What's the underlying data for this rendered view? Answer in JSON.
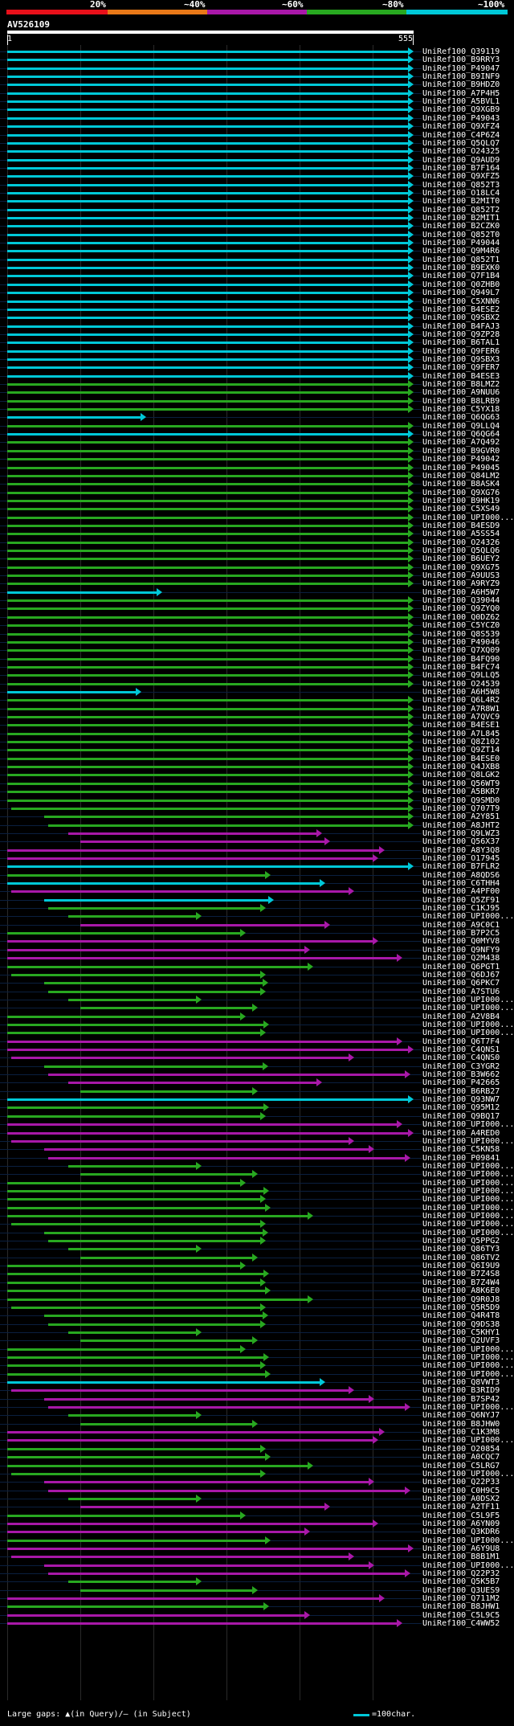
{
  "legend": {
    "labels": [
      "20%",
      "~40%",
      "~60%",
      "~80%",
      "~100%"
    ],
    "colors": [
      "#e8101a",
      "#e87818",
      "#a818a8",
      "#28a820",
      "#00c8d8"
    ]
  },
  "query": {
    "id": "AV526109",
    "start": "1",
    "end": "555"
  },
  "hits": [
    {
      "label": "UniRef100_Q39119",
      "color": "#00c8d8"
    },
    {
      "label": "UniRef100_B9RRY3",
      "color": "#00c8d8"
    },
    {
      "label": "UniRef100_P49047",
      "color": "#00c8d8"
    },
    {
      "label": "UniRef100_B9INF9",
      "color": "#00c8d8"
    },
    {
      "label": "UniRef100_B9HDZ0",
      "color": "#00c8d8"
    },
    {
      "label": "UniRef100_A7P4H5",
      "color": "#00c8d8"
    },
    {
      "label": "UniRef100_A5BVL1",
      "color": "#00c8d8"
    },
    {
      "label": "UniRef100_Q9XGB9",
      "color": "#00c8d8"
    },
    {
      "label": "UniRef100_P49043",
      "color": "#00c8d8"
    },
    {
      "label": "UniRef100_Q9XFZ4",
      "color": "#00c8d8"
    },
    {
      "label": "UniRef100_C4P6Z4",
      "color": "#00c8d8"
    },
    {
      "label": "UniRef100_Q5QLQ7",
      "color": "#00c8d8"
    },
    {
      "label": "UniRef100_O24325",
      "color": "#00c8d8"
    },
    {
      "label": "UniRef100_Q9AUD9",
      "color": "#00c8d8"
    },
    {
      "label": "UniRef100_B7F164",
      "color": "#00c8d8"
    },
    {
      "label": "UniRef100_Q9XFZ5",
      "color": "#00c8d8"
    },
    {
      "label": "UniRef100_Q852T3",
      "color": "#00c8d8"
    },
    {
      "label": "UniRef100_O18LC4",
      "color": "#00c8d8"
    },
    {
      "label": "UniRef100_B2MIT0",
      "color": "#00c8d8"
    },
    {
      "label": "UniRef100_Q852T2",
      "color": "#00c8d8"
    },
    {
      "label": "UniRef100_B2MIT1",
      "color": "#00c8d8"
    },
    {
      "label": "UniRef100_B2CZK0",
      "color": "#00c8d8"
    },
    {
      "label": "UniRef100_Q852T0",
      "color": "#00c8d8"
    },
    {
      "label": "UniRef100_P49044",
      "color": "#00c8d8"
    },
    {
      "label": "UniRef100_Q9M4R6",
      "color": "#00c8d8"
    },
    {
      "label": "UniRef100_Q852T1",
      "color": "#00c8d8"
    },
    {
      "label": "UniRef100_B9EXK0",
      "color": "#00c8d8"
    },
    {
      "label": "UniRef100_Q7F1B4",
      "color": "#00c8d8"
    },
    {
      "label": "UniRef100_Q0ZHB0",
      "color": "#00c8d8"
    },
    {
      "label": "UniRef100_Q949L7",
      "color": "#00c8d8"
    },
    {
      "label": "UniRef100_C5XNN6",
      "color": "#00c8d8"
    },
    {
      "label": "UniRef100_B4ESE2",
      "color": "#00c8d8"
    },
    {
      "label": "UniRef100_Q9SBX2",
      "color": "#00c8d8"
    },
    {
      "label": "UniRef100_B4FAJ3",
      "color": "#00c8d8"
    },
    {
      "label": "UniRef100_Q9ZP28",
      "color": "#00c8d8"
    },
    {
      "label": "UniRef100_B6TAL1",
      "color": "#00c8d8"
    },
    {
      "label": "UniRef100_Q9FER6",
      "color": "#00c8d8"
    },
    {
      "label": "UniRef100_Q9SBX3",
      "color": "#00c8d8"
    },
    {
      "label": "UniRef100_Q9FER7",
      "color": "#00c8d8"
    },
    {
      "label": "UniRef100_B4ESE3",
      "color": "#00c8d8"
    },
    {
      "label": "UniRef100_B8LMZ2",
      "color": "#28a820"
    },
    {
      "label": "UniRef100_A9NUU6",
      "color": "#28a820"
    },
    {
      "label": "UniRef100_B8LRB9",
      "color": "#28a820"
    },
    {
      "label": "UniRef100_C5YX18",
      "color": "#28a820"
    },
    {
      "label": "UniRef100_Q6QG63",
      "color": "#00c8d8"
    },
    {
      "label": "UniRef100_Q9LLQ4",
      "color": "#28a820"
    },
    {
      "label": "UniRef100_Q6QG64",
      "color": "#00c8d8"
    },
    {
      "label": "UniRef100_A7Q492",
      "color": "#28a820"
    },
    {
      "label": "UniRef100_B9GVR0",
      "color": "#28a820"
    },
    {
      "label": "UniRef100_P49042",
      "color": "#28a820"
    },
    {
      "label": "UniRef100_P49045",
      "color": "#28a820"
    },
    {
      "label": "UniRef100_Q84LM2",
      "color": "#28a820"
    },
    {
      "label": "UniRef100_B8ASK4",
      "color": "#28a820"
    },
    {
      "label": "UniRef100_Q9XG76",
      "color": "#28a820"
    },
    {
      "label": "UniRef100_B9HK19",
      "color": "#28a820"
    },
    {
      "label": "UniRef100_C5XS49",
      "color": "#28a820"
    },
    {
      "label": "UniRef100_UPI000...",
      "color": "#28a820"
    },
    {
      "label": "UniRef100_B4ESD9",
      "color": "#28a820"
    },
    {
      "label": "UniRef100_A5SS54",
      "color": "#28a820"
    },
    {
      "label": "UniRef100_O24326",
      "color": "#28a820"
    },
    {
      "label": "UniRef100_Q5QLQ6",
      "color": "#28a820"
    },
    {
      "label": "UniRef100_B6UEY2",
      "color": "#28a820"
    },
    {
      "label": "UniRef100_Q9XG75",
      "color": "#28a820"
    },
    {
      "label": "UniRef100_A9UUS3",
      "color": "#28a820"
    },
    {
      "label": "UniRef100_A9RYZ9",
      "color": "#28a820"
    },
    {
      "label": "UniRef100_A6H5W7",
      "color": "#00c8d8"
    },
    {
      "label": "UniRef100_Q39044",
      "color": "#28a820"
    },
    {
      "label": "UniRef100_Q9ZYQ0",
      "color": "#28a820"
    },
    {
      "label": "UniRef100_Q0DZ62",
      "color": "#28a820"
    },
    {
      "label": "UniRef100_C5YCZ0",
      "color": "#28a820"
    },
    {
      "label": "UniRef100_Q8S539",
      "color": "#28a820"
    },
    {
      "label": "UniRef100_P49046",
      "color": "#28a820"
    },
    {
      "label": "UniRef100_Q7XQ09",
      "color": "#28a820"
    },
    {
      "label": "UniRef100_B4FQ90",
      "color": "#28a820"
    },
    {
      "label": "UniRef100_B4FC74",
      "color": "#28a820"
    },
    {
      "label": "UniRef100_Q9LLQ5",
      "color": "#28a820"
    },
    {
      "label": "UniRef100_O24539",
      "color": "#28a820"
    },
    {
      "label": "UniRef100_A6H5W8",
      "color": "#00c8d8"
    },
    {
      "label": "UniRef100_Q6L4R2",
      "color": "#28a820"
    },
    {
      "label": "UniRef100_A7R8W1",
      "color": "#28a820"
    },
    {
      "label": "UniRef100_A7QVC9",
      "color": "#28a820"
    },
    {
      "label": "UniRef100_B4ESE1",
      "color": "#28a820"
    },
    {
      "label": "UniRef100_A7L845",
      "color": "#28a820"
    },
    {
      "label": "UniRef100_Q8Z102",
      "color": "#28a820"
    },
    {
      "label": "UniRef100_Q9ZT14",
      "color": "#28a820"
    },
    {
      "label": "UniRef100_B4ESE0",
      "color": "#28a820"
    },
    {
      "label": "UniRef100_Q4JXB8",
      "color": "#28a820"
    },
    {
      "label": "UniRef100_Q8LGK2",
      "color": "#28a820"
    },
    {
      "label": "UniRef100_Q56WT9",
      "color": "#28a820"
    },
    {
      "label": "UniRef100_A5BKR7",
      "color": "#28a820"
    },
    {
      "label": "UniRef100_Q9SMD0",
      "color": "#28a820"
    },
    {
      "label": "UniRef100_Q707T9",
      "color": "#28a820"
    },
    {
      "label": "UniRef100_A2Y851",
      "color": "#28a820"
    },
    {
      "label": "UniRef100_A8JHT2",
      "color": "#28a820"
    },
    {
      "label": "UniRef100_Q9LWZ3",
      "color": "#a818a8"
    },
    {
      "label": "UniRef100_Q56X37",
      "color": "#a818a8"
    },
    {
      "label": "UniRef100_A8Y3Q8",
      "color": "#a818a8"
    },
    {
      "label": "UniRef100_O17945",
      "color": "#a818a8"
    },
    {
      "label": "UniRef100_B7FLR2",
      "color": "#00c8d8"
    },
    {
      "label": "UniRef100_A8QDS6",
      "color": "#28a820"
    },
    {
      "label": "UniRef100_C6THH4",
      "color": "#00c8d8"
    },
    {
      "label": "UniRef100_A4PF00",
      "color": "#a818a8"
    },
    {
      "label": "UniRef100_Q5ZF91",
      "color": "#00c8d8"
    },
    {
      "label": "UniRef100_C1KJ95",
      "color": "#28a820"
    },
    {
      "label": "UniRef100_UPI000...",
      "color": "#28a820"
    },
    {
      "label": "UniRef100_A9C0C1",
      "color": "#a818a8"
    },
    {
      "label": "UniRef100_B7P2C5",
      "color": "#28a820"
    },
    {
      "label": "UniRef100_Q0MYV8",
      "color": "#a818a8"
    },
    {
      "label": "UniRef100_Q9NFY9",
      "color": "#a818a8"
    },
    {
      "label": "UniRef100_Q2M438",
      "color": "#a818a8"
    },
    {
      "label": "UniRef100_Q6PGT1",
      "color": "#28a820"
    },
    {
      "label": "UniRef100_Q6DJ67",
      "color": "#28a820"
    },
    {
      "label": "UniRef100_Q6PKC7",
      "color": "#28a820"
    },
    {
      "label": "UniRef100_A7STU6",
      "color": "#28a820"
    },
    {
      "label": "UniRef100_UPI000...",
      "color": "#28a820"
    },
    {
      "label": "UniRef100_UPI000...",
      "color": "#28a820"
    },
    {
      "label": "UniRef100_A2V8B4",
      "color": "#28a820"
    },
    {
      "label": "UniRef100_UPI000...",
      "color": "#28a820"
    },
    {
      "label": "UniRef100_UPI000...",
      "color": "#28a820"
    },
    {
      "label": "UniRef100_Q6T7F4",
      "color": "#a818a8"
    },
    {
      "label": "UniRef100_C4QNS1",
      "color": "#a818a8"
    },
    {
      "label": "UniRef100_C4QNS0",
      "color": "#a818a8"
    },
    {
      "label": "UniRef100_C3YGR2",
      "color": "#28a820"
    },
    {
      "label": "UniRef100_B3W662",
      "color": "#a818a8"
    },
    {
      "label": "UniRef100_P42665",
      "color": "#a818a8"
    },
    {
      "label": "UniRef100_B6RB27",
      "color": "#28a820"
    },
    {
      "label": "UniRef100_Q93NW7",
      "color": "#00c8d8"
    },
    {
      "label": "UniRef100_Q95M12",
      "color": "#28a820"
    },
    {
      "label": "UniRef100_Q9BQ17",
      "color": "#28a820"
    },
    {
      "label": "UniRef100_UPI000...",
      "color": "#a818a8"
    },
    {
      "label": "UniRef100_A4RED0",
      "color": "#a818a8"
    },
    {
      "label": "UniRef100_UPI000...",
      "color": "#a818a8"
    },
    {
      "label": "UniRef100_C5KN58",
      "color": "#a818a8"
    },
    {
      "label": "UniRef100_P09841",
      "color": "#a818a8"
    },
    {
      "label": "UniRef100_UPI000...",
      "color": "#28a820"
    },
    {
      "label": "UniRef100_UPI000...",
      "color": "#28a820"
    },
    {
      "label": "UniRef100_UPI000...",
      "color": "#28a820"
    },
    {
      "label": "UniRef100_UPI000...",
      "color": "#28a820"
    },
    {
      "label": "UniRef100_UPI000...",
      "color": "#28a820"
    },
    {
      "label": "UniRef100_UPI000...",
      "color": "#28a820"
    },
    {
      "label": "UniRef100_UPI000...",
      "color": "#28a820"
    },
    {
      "label": "UniRef100_UPI000...",
      "color": "#28a820"
    },
    {
      "label": "UniRef100_UPI000...",
      "color": "#28a820"
    },
    {
      "label": "UniRef100_Q5PPG2",
      "color": "#28a820"
    },
    {
      "label": "UniRef100_Q86TY3",
      "color": "#28a820"
    },
    {
      "label": "UniRef100_Q86TV2",
      "color": "#28a820"
    },
    {
      "label": "UniRef100_Q6I9U9",
      "color": "#28a820"
    },
    {
      "label": "UniRef100_B7Z4S8",
      "color": "#28a820"
    },
    {
      "label": "UniRef100_B7Z4W4",
      "color": "#28a820"
    },
    {
      "label": "UniRef100_A8K6E0",
      "color": "#28a820"
    },
    {
      "label": "UniRef100_Q9R0J8",
      "color": "#28a820"
    },
    {
      "label": "UniRef100_Q5R5D9",
      "color": "#28a820"
    },
    {
      "label": "UniRef100_Q4R4T8",
      "color": "#28a820"
    },
    {
      "label": "UniRef100_Q9DS38",
      "color": "#28a820"
    },
    {
      "label": "UniRef100_C5KHY1",
      "color": "#28a820"
    },
    {
      "label": "UniRef100_Q2UVF3",
      "color": "#28a820"
    },
    {
      "label": "UniRef100_UPI000...",
      "color": "#28a820"
    },
    {
      "label": "UniRef100_UPI000...",
      "color": "#28a820"
    },
    {
      "label": "UniRef100_UPI000...",
      "color": "#28a820"
    },
    {
      "label": "UniRef100_UPI000...",
      "color": "#28a820"
    },
    {
      "label": "UniRef100_Q8VWT3",
      "color": "#00c8d8"
    },
    {
      "label": "UniRef100_B3RID9",
      "color": "#a818a8"
    },
    {
      "label": "UniRef100_B7SP42",
      "color": "#a818a8"
    },
    {
      "label": "UniRef100_UPI000...",
      "color": "#a818a8"
    },
    {
      "label": "UniRef100_Q6NYJ7",
      "color": "#28a820"
    },
    {
      "label": "UniRef100_B8JHW0",
      "color": "#28a820"
    },
    {
      "label": "UniRef100_C1K3M8",
      "color": "#a818a8"
    },
    {
      "label": "UniRef100_UPI000...",
      "color": "#a818a8"
    },
    {
      "label": "UniRef100_O20854",
      "color": "#28a820"
    },
    {
      "label": "UniRef100_A0CQC7",
      "color": "#28a820"
    },
    {
      "label": "UniRef100_C5LRG7",
      "color": "#28a820"
    },
    {
      "label": "UniRef100_UPI000...",
      "color": "#28a820"
    },
    {
      "label": "UniRef100_Q22P33",
      "color": "#a818a8"
    },
    {
      "label": "UniRef100_C0H9C5",
      "color": "#a818a8"
    },
    {
      "label": "UniRef100_A0DSX2",
      "color": "#28a820"
    },
    {
      "label": "UniRef100_A2TF11",
      "color": "#a818a8"
    },
    {
      "label": "UniRef100_C5L9F5",
      "color": "#28a820"
    },
    {
      "label": "UniRef100_A6YN09",
      "color": "#a818a8"
    },
    {
      "label": "UniRef100_Q3KDR6",
      "color": "#a818a8"
    },
    {
      "label": "UniRef100_UPI000...",
      "color": "#28a820"
    },
    {
      "label": "UniRef100_A6Y9U8",
      "color": "#a818a8"
    },
    {
      "label": "UniRef100_B8B1M1",
      "color": "#a818a8"
    },
    {
      "label": "UniRef100_UPI000...",
      "color": "#a818a8"
    },
    {
      "label": "UniRef100_Q22P32",
      "color": "#a818a8"
    },
    {
      "label": "UniRef100_Q5K5B7",
      "color": "#28a820"
    },
    {
      "label": "UniRef100_Q3UES9",
      "color": "#28a820"
    },
    {
      "label": "UniRef100_Q711M2",
      "color": "#a818a8"
    },
    {
      "label": "UniRef100_B8JHW1",
      "color": "#28a820"
    },
    {
      "label": "UniRef100_C5L9C5",
      "color": "#a818a8"
    },
    {
      "label": "UniRef100_C4WW52",
      "color": "#a818a8"
    }
  ],
  "footer": {
    "large_gaps": "Large gaps: ▲(in Query)/‒ (in Subject)",
    "scale": "=100char."
  }
}
